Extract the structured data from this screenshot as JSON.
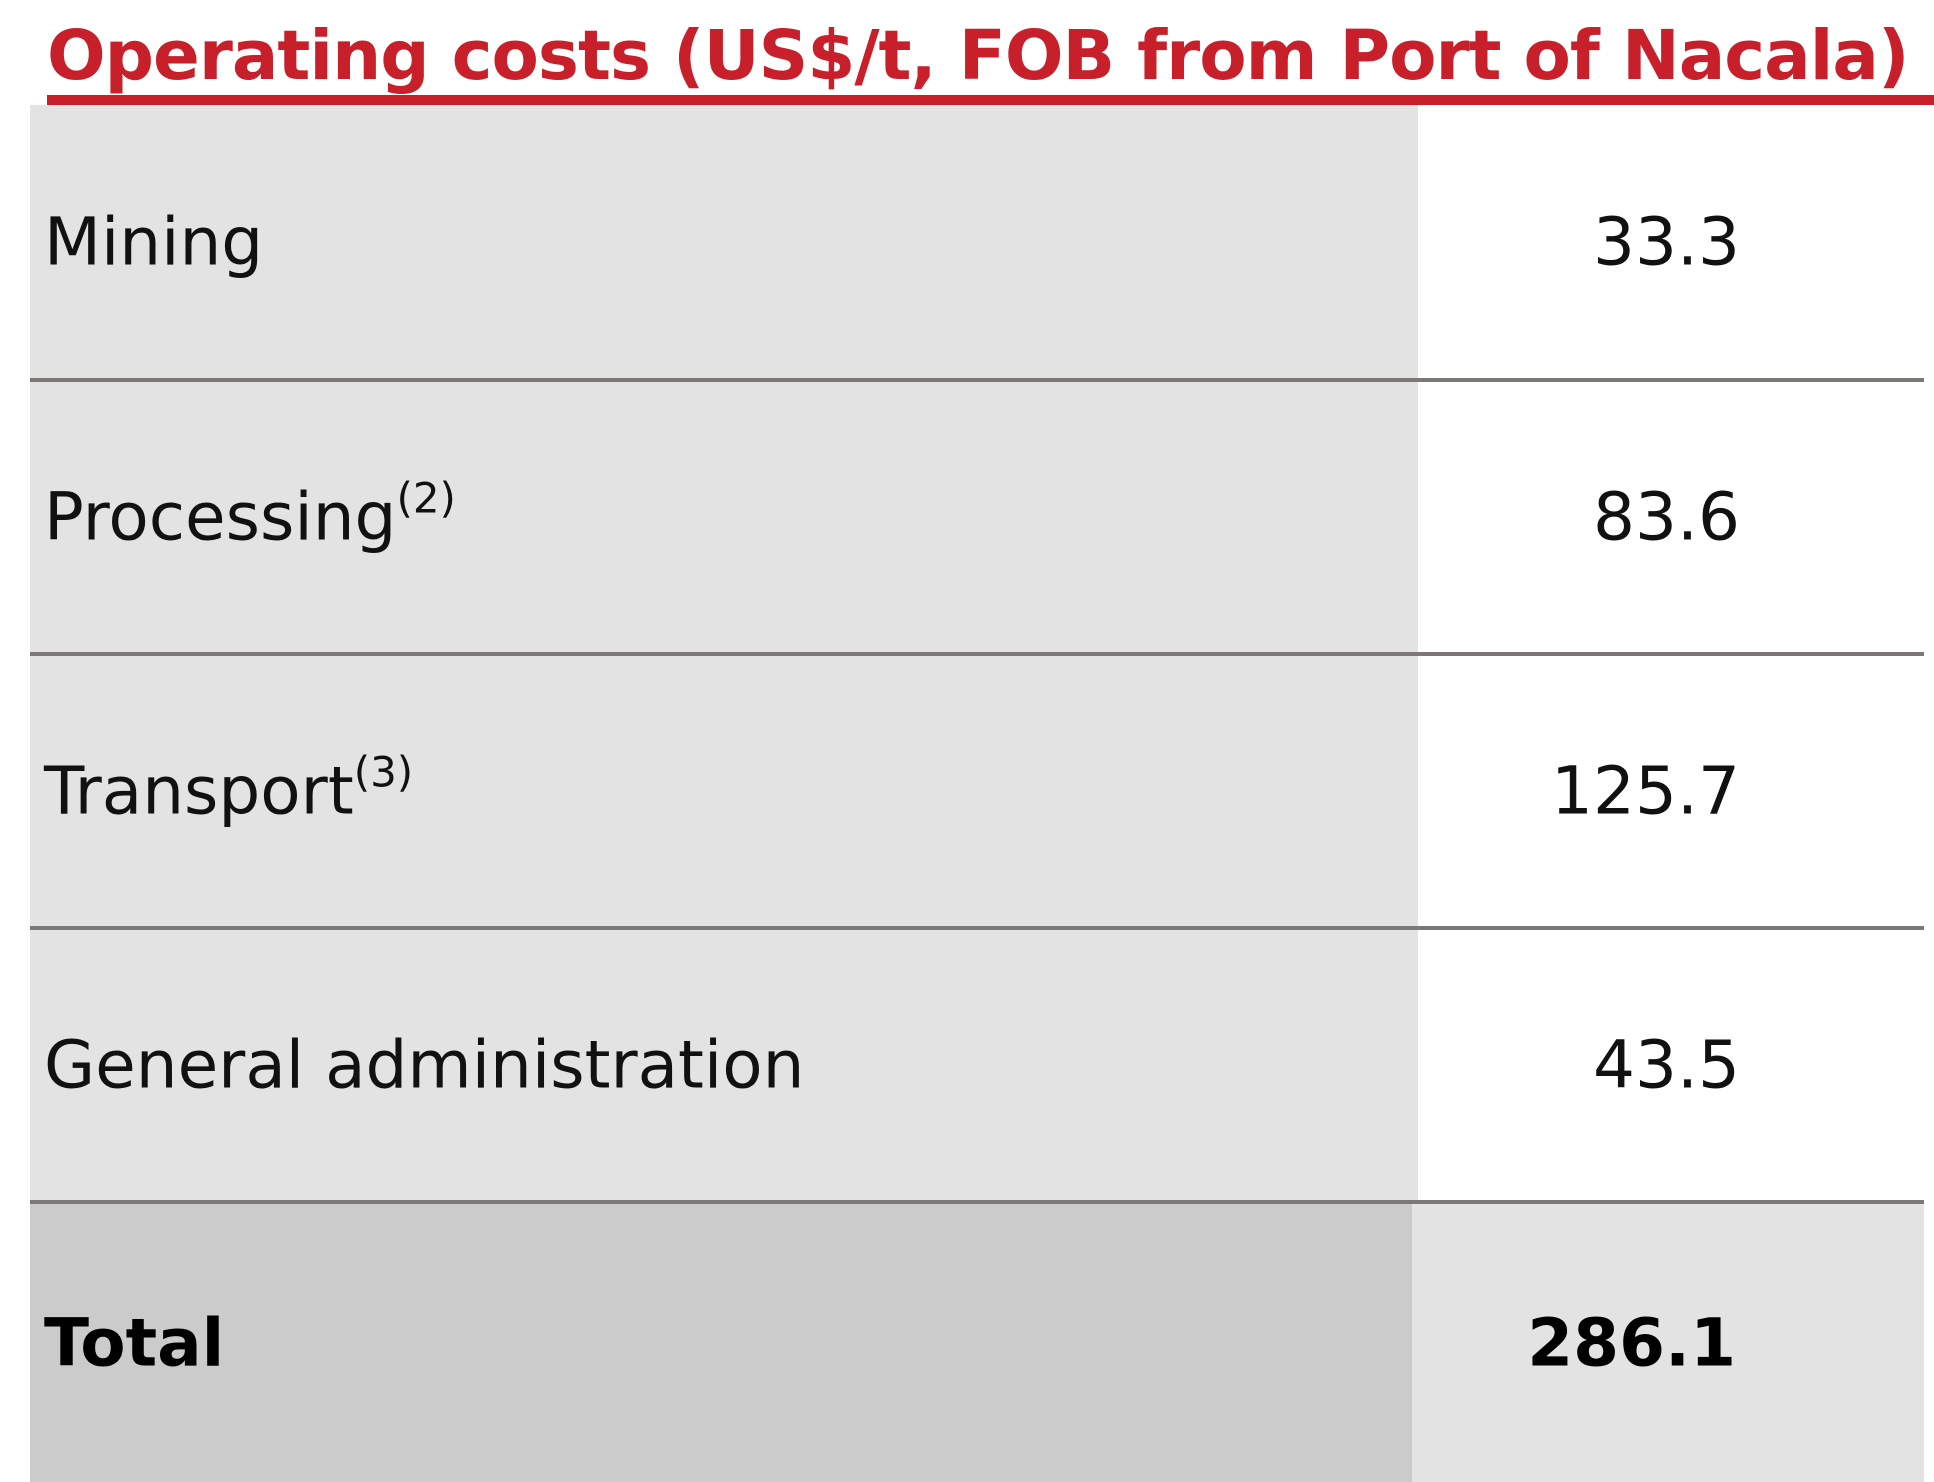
{
  "title": "Operating costs (US$/t, FOB from Port of Nacala)",
  "rows": [
    {
      "label": "Mining",
      "note": "",
      "value": "33.3"
    },
    {
      "label": "Processing",
      "note": "(2)",
      "value": "83.6"
    },
    {
      "label": "Transport",
      "note": "(3)",
      "value": "125.7"
    },
    {
      "label": "General administration",
      "note": "",
      "value": "43.5"
    }
  ],
  "total": {
    "label": "Total",
    "value": "286.1"
  },
  "colors": {
    "title": "#c8202a",
    "label_column": "#e3e3e3",
    "total_label_column": "#cbcbcb",
    "divider": "#7d7878"
  }
}
